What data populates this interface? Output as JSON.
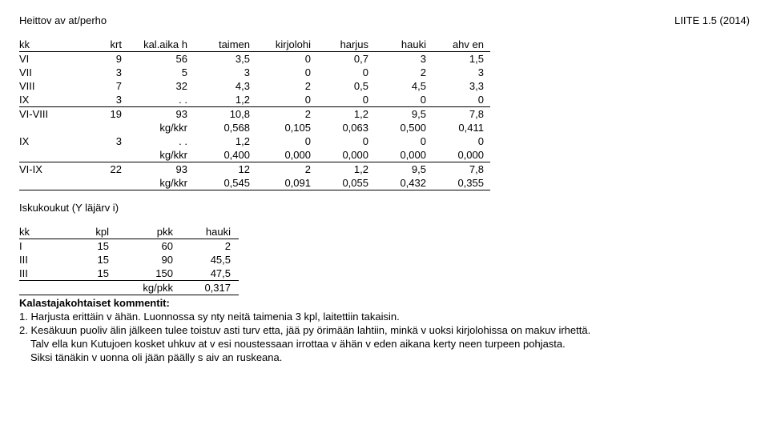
{
  "header": {
    "left": "Heittov av at/perho",
    "right": "LIITE 1.5 (2014)"
  },
  "table1": {
    "headers": [
      "kk",
      "krt",
      "kal.aika h",
      "taimen",
      "kirjolohi",
      "harjus",
      "hauki",
      "ahv en"
    ],
    "rows": [
      [
        "VI",
        "9",
        "56",
        "3,5",
        "0",
        "0,7",
        "3",
        "1,5",
        ""
      ],
      [
        "VII",
        "3",
        "5",
        "3",
        "0",
        "0",
        "2",
        "3",
        ""
      ],
      [
        "VIII",
        "7",
        "32",
        "4,3",
        "2",
        "0,5",
        "4,5",
        "3,3",
        ""
      ],
      [
        "IX",
        "3",
        ". .",
        "1,2",
        "0",
        "0",
        "0",
        "0",
        "bot"
      ],
      [
        "VI-VIII",
        "19",
        "93",
        "10,8",
        "2",
        "1,2",
        "9,5",
        "7,8",
        ""
      ],
      [
        "",
        "",
        "kg/kkr",
        "0,568",
        "0,105",
        "0,063",
        "0,500",
        "0,411",
        ""
      ],
      [
        "IX",
        "3",
        ". .",
        "1,2",
        "0",
        "0",
        "0",
        "0",
        ""
      ],
      [
        "",
        "",
        "kg/kkr",
        "0,400",
        "0,000",
        "0,000",
        "0,000",
        "0,000",
        "bot"
      ],
      [
        "VI-IX",
        "22",
        "93",
        "12",
        "2",
        "1,2",
        "9,5",
        "7,8",
        ""
      ],
      [
        "",
        "",
        "kg/kkr",
        "0,545",
        "0,091",
        "0,055",
        "0,432",
        "0,355",
        "bot"
      ]
    ]
  },
  "section2_title": "Iskukoukut (Y läjärv i)",
  "table2": {
    "headers": [
      "kk",
      "kpl",
      "pkk",
      "hauki"
    ],
    "rows": [
      [
        "I",
        "15",
        "60",
        "2",
        ""
      ],
      [
        "III",
        "15",
        "90",
        "45,5",
        ""
      ],
      [
        "III",
        "15",
        "150",
        "47,5",
        "bot"
      ],
      [
        "",
        "",
        "kg/pkk",
        "0,317",
        "bot"
      ]
    ]
  },
  "comments": {
    "title": "Kalastajakohtaiset kommentit:",
    "lines": [
      "1. Harjusta erittäin v ähän. Luonnossa sy nty neitä taimenia 3 kpl, laitettiin takaisin.",
      "2. Kesäkuun puoliv älin jälkeen tulee toistuv asti turv etta, jää py örimään lahtiin, minkä v uoksi kirjolohissa on makuv irhettä.",
      "Talv ella kun Kutujoen kosket uhkuv at v esi noustessaan irrottaa v ähän v eden aikana kerty neen turpeen pohjasta.",
      "Siksi tänäkin v uonna oli jään päälly s aiv an ruskeana."
    ]
  }
}
